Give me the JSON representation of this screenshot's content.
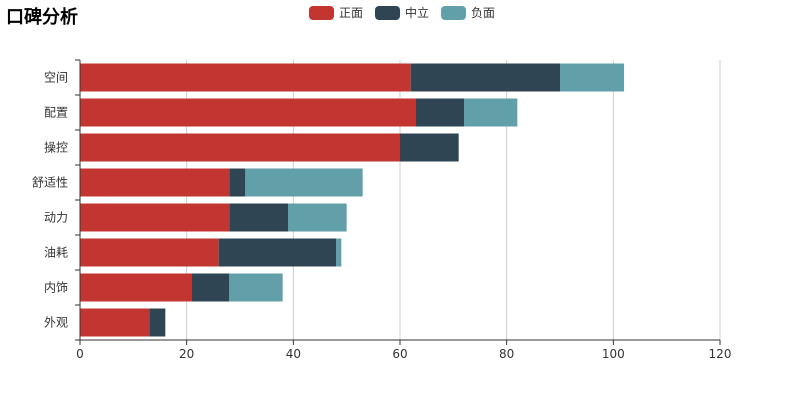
{
  "title": "口碑分析",
  "chart_data": {
    "type": "bar",
    "orientation": "horizontal",
    "stacked": true,
    "categories": [
      "空间",
      "配置",
      "操控",
      "舒适性",
      "动力",
      "油耗",
      "内饰",
      "外观"
    ],
    "series": [
      {
        "name": "正面",
        "color": "#c23531",
        "values": [
          62,
          63,
          60,
          28,
          28,
          26,
          21,
          13
        ]
      },
      {
        "name": "中立",
        "color": "#2f4554",
        "values": [
          28,
          9,
          11,
          3,
          11,
          22,
          7,
          3
        ]
      },
      {
        "name": "负面",
        "color": "#61a0a8",
        "values": [
          12,
          10,
          0,
          22,
          11,
          1,
          10,
          0
        ]
      }
    ],
    "xlim": [
      0,
      120
    ],
    "xticks": [
      "0",
      "20",
      "40",
      "60",
      "80",
      "100",
      "120"
    ],
    "grid": "vertical",
    "legend": "top-center"
  }
}
